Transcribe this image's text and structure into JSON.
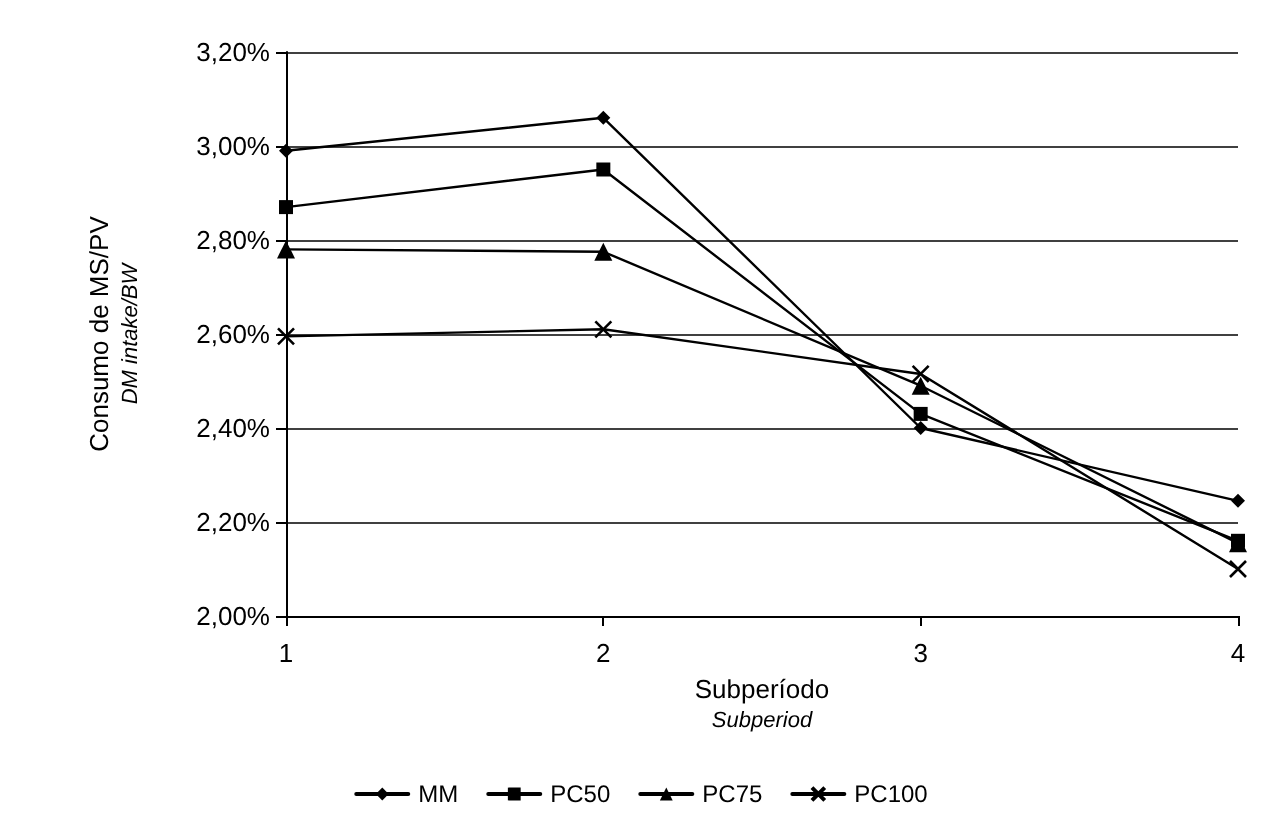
{
  "chart_data": {
    "type": "line",
    "xlabel": "Subperíodo\nSubperiod",
    "ylabel": "Consumo de MS/PV\nDM intake/BW",
    "x": [
      1,
      2,
      3,
      4
    ],
    "series": [
      {
        "name": "MM",
        "color": "#000000",
        "marker": "diamond",
        "values": [
          2.99,
          3.06,
          2.4,
          2.245
        ]
      },
      {
        "name": "PC50",
        "color": "#000000",
        "marker": "square",
        "values": [
          2.87,
          2.95,
          2.43,
          2.16
        ]
      },
      {
        "name": "PC75",
        "color": "#000000",
        "marker": "triangle",
        "values": [
          2.78,
          2.775,
          2.49,
          2.155
        ]
      },
      {
        "name": "PC100",
        "color": "#000000",
        "marker": "cross",
        "values": [
          2.595,
          2.61,
          2.515,
          2.1
        ]
      }
    ],
    "xlim": [
      1,
      4
    ],
    "xticks": [
      1,
      2,
      3,
      4
    ],
    "ylim": [
      2.0,
      3.2
    ],
    "yticks": [
      {
        "value": 2.0,
        "label": "2,00%"
      },
      {
        "value": 2.2,
        "label": "2,20%"
      },
      {
        "value": 2.4,
        "label": "2,40%"
      },
      {
        "value": 2.6,
        "label": "2,60%"
      },
      {
        "value": 2.8,
        "label": "2,80%"
      },
      {
        "value": 3.0,
        "label": "3,00%"
      },
      {
        "value": 3.2,
        "label": "3,20%"
      }
    ],
    "grid": "y",
    "legend": "bottom",
    "line_style": "solid"
  }
}
